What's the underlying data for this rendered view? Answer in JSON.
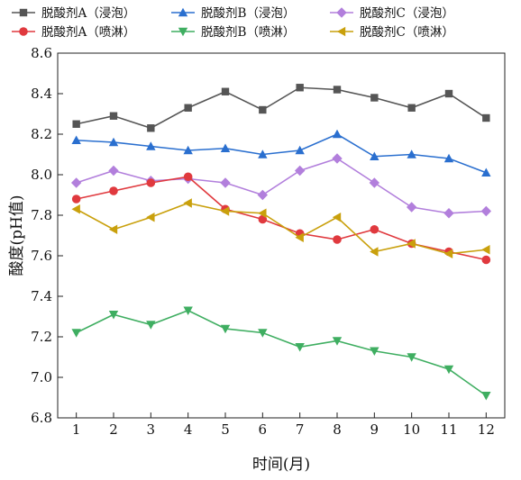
{
  "chart_data": {
    "type": "line",
    "xlabel": "时间(月)",
    "ylabel": "酸度(pH值)",
    "x": [
      1,
      2,
      3,
      4,
      5,
      6,
      7,
      8,
      9,
      10,
      11,
      12
    ],
    "xlim": [
      0.5,
      12.5
    ],
    "ylim": [
      6.8,
      8.6
    ],
    "yticks": [
      "6.8",
      "7.0",
      "7.2",
      "7.4",
      "7.6",
      "7.8",
      "8.0",
      "8.2",
      "8.4",
      "8.6"
    ],
    "xticks": [
      "1",
      "2",
      "3",
      "4",
      "5",
      "6",
      "7",
      "8",
      "9",
      "10",
      "11",
      "12"
    ],
    "grid": false,
    "legend_position": "top",
    "series": [
      {
        "name": "脱酸剂A（浸泡）",
        "color": "#555555",
        "marker": "square",
        "values": [
          8.25,
          8.29,
          8.23,
          8.33,
          8.41,
          8.32,
          8.43,
          8.42,
          8.38,
          8.33,
          8.4,
          8.28
        ]
      },
      {
        "name": "脱酸剂B（浸泡）",
        "color": "#2a6fcf",
        "marker": "triangle-up",
        "values": [
          8.17,
          8.16,
          8.14,
          8.12,
          8.13,
          8.1,
          8.12,
          8.2,
          8.09,
          8.1,
          8.08,
          8.01
        ]
      },
      {
        "name": "脱酸剂C（浸泡）",
        "color": "#b27fdc",
        "marker": "diamond",
        "values": [
          7.96,
          8.02,
          7.97,
          7.98,
          7.96,
          7.9,
          8.02,
          8.08,
          7.96,
          7.84,
          7.81,
          7.82
        ]
      },
      {
        "name": "脱酸剂A（喷淋）",
        "color": "#e0393e",
        "marker": "circle",
        "values": [
          7.88,
          7.92,
          7.96,
          7.99,
          7.83,
          7.78,
          7.71,
          7.68,
          7.73,
          7.66,
          7.62,
          7.58
        ]
      },
      {
        "name": "脱酸剂B（喷淋）",
        "color": "#3fae61",
        "marker": "triangle-down",
        "values": [
          7.22,
          7.31,
          7.26,
          7.33,
          7.24,
          7.22,
          7.15,
          7.18,
          7.13,
          7.1,
          7.04,
          6.91
        ]
      },
      {
        "name": "脱酸剂C（喷淋）",
        "color": "#c9a00c",
        "marker": "triangle-left",
        "values": [
          7.83,
          7.73,
          7.79,
          7.86,
          7.82,
          7.81,
          7.69,
          7.79,
          7.62,
          7.66,
          7.61,
          7.63
        ]
      }
    ]
  }
}
